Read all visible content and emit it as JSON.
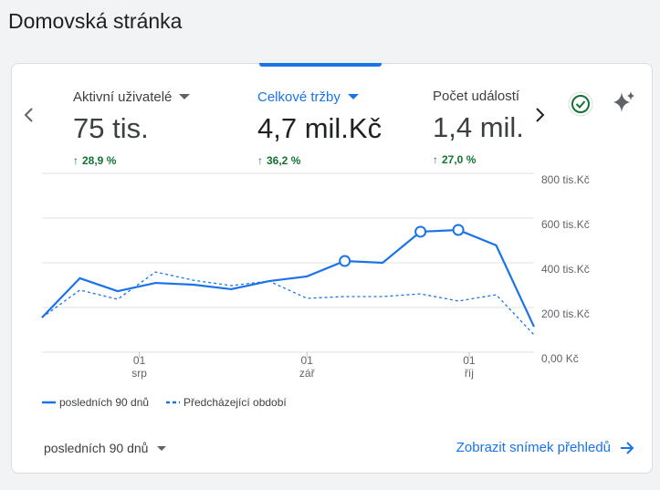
{
  "header": {
    "title": "Domovská stránka"
  },
  "metrics": [
    {
      "label": "Aktivní uživatelé",
      "value": "75 tis.",
      "change": "28,9 %"
    },
    {
      "label": "Celkové tržby",
      "value": "4,7 mil.Kč",
      "change": "36,2 %"
    },
    {
      "label": "Počet událostí",
      "value": "1,4 mil.",
      "change": "27,0 %"
    }
  ],
  "chart_data": {
    "type": "line",
    "x": [
      "07-14",
      "07-21",
      "07-28",
      "08-04",
      "08-11",
      "08-18",
      "08-25",
      "09-01",
      "09-08",
      "09-15",
      "09-22",
      "09-29",
      "10-06",
      "10-13"
    ],
    "xlim": [
      "07-14",
      "10-13"
    ],
    "xticks": [
      {
        "value": "08-01",
        "label": [
          "01",
          "srp"
        ]
      },
      {
        "value": "09-01",
        "label": [
          "01",
          "zář"
        ]
      },
      {
        "value": "10-01",
        "label": [
          "01",
          "říj"
        ]
      }
    ],
    "ylim": [
      0,
      800000
    ],
    "yticks": [
      {
        "value": 0,
        "label": "0,00 Kč"
      },
      {
        "value": 200000,
        "label": "200 tis.Kč"
      },
      {
        "value": 400000,
        "label": "400 tis.Kč"
      },
      {
        "value": 600000,
        "label": "600 tis.Kč"
      },
      {
        "value": 800000,
        "label": "800 tis.Kč"
      }
    ],
    "grid": true,
    "series": [
      {
        "name": "posledních 90 dnů",
        "color": "#1a73e8",
        "dash": false,
        "marker_points": [
          8,
          10,
          11
        ],
        "values": [
          155000,
          331000,
          273000,
          310000,
          302000,
          282000,
          318000,
          339000,
          408000,
          400000,
          539000,
          547000,
          478000,
          114000
        ]
      },
      {
        "name": "Předcházející období",
        "color": "#1a73e8",
        "dash": true,
        "values": [
          155000,
          278000,
          237000,
          359000,
          322000,
          298000,
          318000,
          241000,
          249000,
          249000,
          261000,
          229000,
          257000,
          78000
        ]
      }
    ]
  },
  "footer": {
    "range": "posledních 90 dnů",
    "link": "Zobrazit snímek přehledů"
  }
}
